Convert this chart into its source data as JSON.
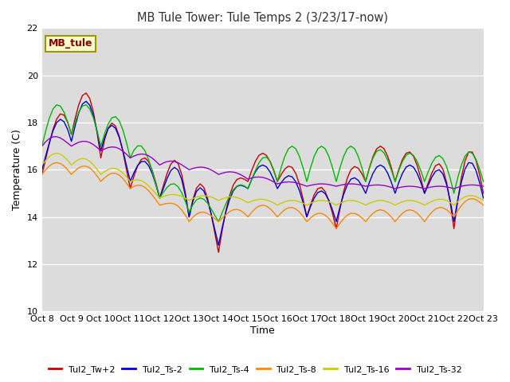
{
  "title": "MB Tule Tower: Tule Temps 2 (3/23/17-now)",
  "xlabel": "Time",
  "ylabel": "Temperature (C)",
  "ylim": [
    10,
    22
  ],
  "yticks": [
    10,
    12,
    14,
    16,
    18,
    20,
    22
  ],
  "bg_color": "#dcdcdc",
  "fig_color": "#ffffff",
  "legend_label": "MB_tule",
  "series_colors": {
    "Tul2_Tw+2": "#cc0000",
    "Tul2_Ts-2": "#0000dd",
    "Tul2_Ts-4": "#00bb00",
    "Tul2_Ts-8": "#ff8800",
    "Tul2_Ts-16": "#cccc00",
    "Tul2_Ts-32": "#9900cc"
  },
  "x_tick_labels": [
    "Oct 8",
    "Oct 9",
    "Oct 10",
    "Oct 11",
    "Oct 12",
    "Oct 13",
    "Oct 14",
    "Oct 15",
    "Oct 16",
    "Oct 17",
    "Oct 18",
    "Oct 19",
    "Oct 20",
    "Oct 21",
    "Oct 22",
    "Oct 23"
  ],
  "x_ticks": [
    0,
    1,
    2,
    3,
    4,
    5,
    6,
    7,
    8,
    9,
    10,
    11,
    12,
    13,
    14,
    15
  ]
}
